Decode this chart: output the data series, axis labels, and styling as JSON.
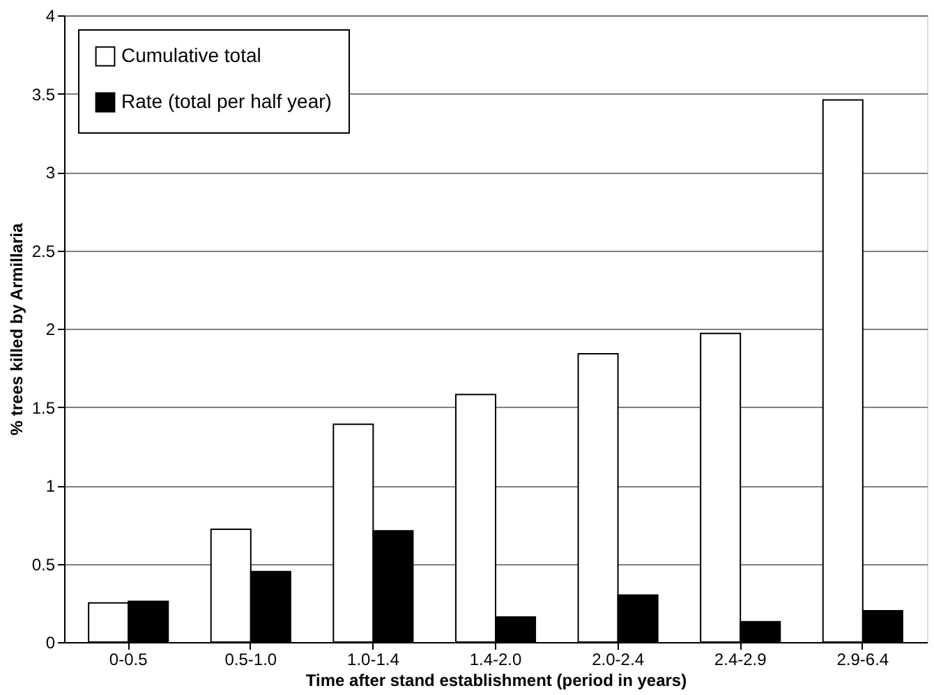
{
  "chart_data": {
    "type": "bar",
    "xlabel": "Time after stand establishment (period in years)",
    "ylabel": "% trees killed by Armillaria",
    "categories": [
      "0-0.5",
      "0.5-1.0",
      "1.0-1.4",
      "1.4-2.0",
      "2.0-2.4",
      "2.4-2.9",
      "2.9-6.4"
    ],
    "series": [
      {
        "name": "Cumulative total",
        "color": "#ffffff",
        "values": [
          0.25,
          0.72,
          1.39,
          1.58,
          1.84,
          1.97,
          3.46
        ]
      },
      {
        "name": "Rate (total per half year)",
        "color": "#000000",
        "values": [
          0.26,
          0.45,
          0.71,
          0.16,
          0.3,
          0.13,
          0.2
        ]
      }
    ],
    "ylim": [
      0,
      4
    ],
    "yticks": [
      0,
      0.5,
      1,
      1.5,
      2,
      2.5,
      3,
      3.5,
      4
    ],
    "grid": "y",
    "legend": "top left"
  }
}
